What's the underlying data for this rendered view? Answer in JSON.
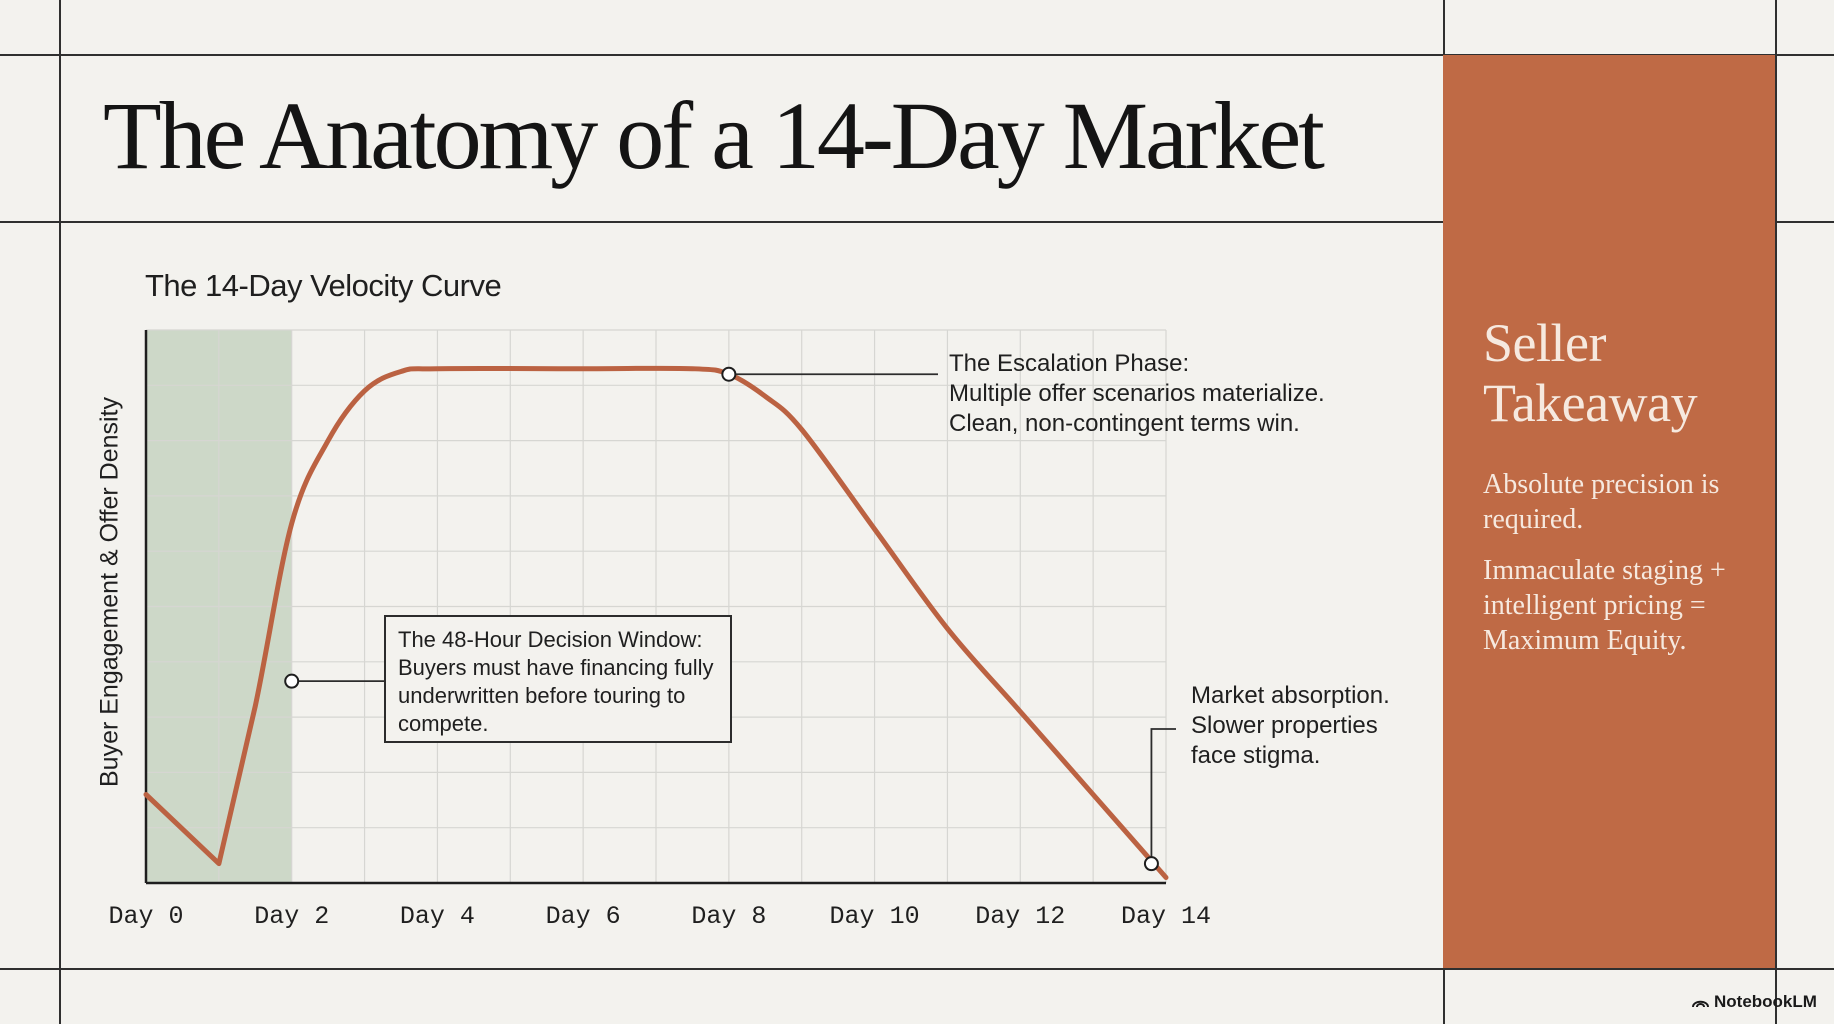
{
  "title": "The Anatomy of a 14-Day Market",
  "chart_data": {
    "type": "line",
    "title": "The 14-Day Velocity Curve",
    "xlabel": "",
    "ylabel": "Buyer Engagement & Offer Density",
    "tick_labels": [
      "Day 0",
      "Day 2",
      "Day 4",
      "Day 6",
      "Day 8",
      "Day 10",
      "Day 12",
      "Day 14"
    ],
    "xlim": [
      0,
      14
    ],
    "ylim": [
      0,
      10
    ],
    "grid": true,
    "shaded_region": {
      "x_start": 0,
      "x_end": 2,
      "color": "#c5d4c1"
    },
    "series": [
      {
        "color": "#bb6242",
        "points": [
          [
            0,
            1.6
          ],
          [
            1,
            0.35
          ],
          [
            1.5,
            3.2
          ],
          [
            2,
            6.5
          ],
          [
            2.5,
            8.0
          ],
          [
            3,
            8.9
          ],
          [
            3.5,
            9.25
          ],
          [
            4,
            9.3
          ],
          [
            6,
            9.3
          ],
          [
            7.5,
            9.3
          ],
          [
            8,
            9.2
          ],
          [
            8.5,
            8.8
          ],
          [
            9,
            8.2
          ],
          [
            10,
            6.4
          ],
          [
            11,
            4.6
          ],
          [
            12,
            3.1
          ],
          [
            13,
            1.6
          ],
          [
            14,
            0.1
          ]
        ]
      }
    ],
    "markers": [
      {
        "x": 2,
        "y": 3.65
      },
      {
        "x": 8,
        "y": 9.2
      },
      {
        "x": 13.8,
        "y": 0.35
      }
    ],
    "annotations": {
      "decision_window": {
        "lines": [
          "The 48-Hour Decision Window:",
          "Buyers must have financing fully",
          "underwritten before touring to",
          "compete."
        ]
      },
      "escalation": {
        "lines": [
          "The Escalation Phase:",
          "Multiple offer scenarios materialize.",
          "Clean, non-contingent terms win."
        ]
      },
      "absorption": {
        "lines": [
          "Market absorption.",
          "Slower properties",
          "face stigma."
        ]
      }
    }
  },
  "takeaway": {
    "title_lines": [
      "Seller",
      "Takeaway"
    ],
    "para1": "Absolute precision is required.",
    "para2": "Immaculate staging + intelligent pricing = Maximum Equity."
  },
  "brand": "NotebookLM"
}
